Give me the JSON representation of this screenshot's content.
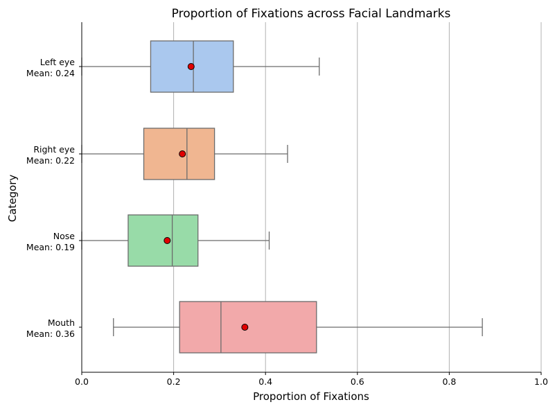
{
  "chart_data": {
    "type": "box",
    "orientation": "horizontal",
    "title": "Proportion of Fixations across Facial Landmarks",
    "xlabel": "Proportion of Fixations",
    "ylabel": "Category",
    "xlim": [
      0.0,
      1.0
    ],
    "xticks": [
      "0.0",
      "0.2",
      "0.4",
      "0.6",
      "0.8",
      "1.0"
    ],
    "grid": "vertical",
    "series": [
      {
        "category": "Left eye",
        "mean_label": "Mean: 0.24",
        "min": 0.0,
        "q1": 0.15,
        "median": 0.243,
        "q3": 0.33,
        "max": 0.517,
        "mean": 0.238,
        "color": "#aac8ee"
      },
      {
        "category": "Right eye",
        "mean_label": "Mean: 0.22",
        "min": 0.0,
        "q1": 0.135,
        "median": 0.229,
        "q3": 0.289,
        "max": 0.448,
        "mean": 0.219,
        "color": "#f0b691"
      },
      {
        "category": "Nose",
        "mean_label": "Mean: 0.19",
        "min": 0.0,
        "q1": 0.101,
        "median": 0.197,
        "q3": 0.253,
        "max": 0.408,
        "mean": 0.186,
        "color": "#98dba8"
      },
      {
        "category": "Mouth",
        "mean_label": "Mean: 0.36",
        "min": 0.069,
        "q1": 0.213,
        "median": 0.303,
        "q3": 0.511,
        "max": 0.872,
        "mean": 0.355,
        "color": "#f2a9aa"
      }
    ]
  }
}
